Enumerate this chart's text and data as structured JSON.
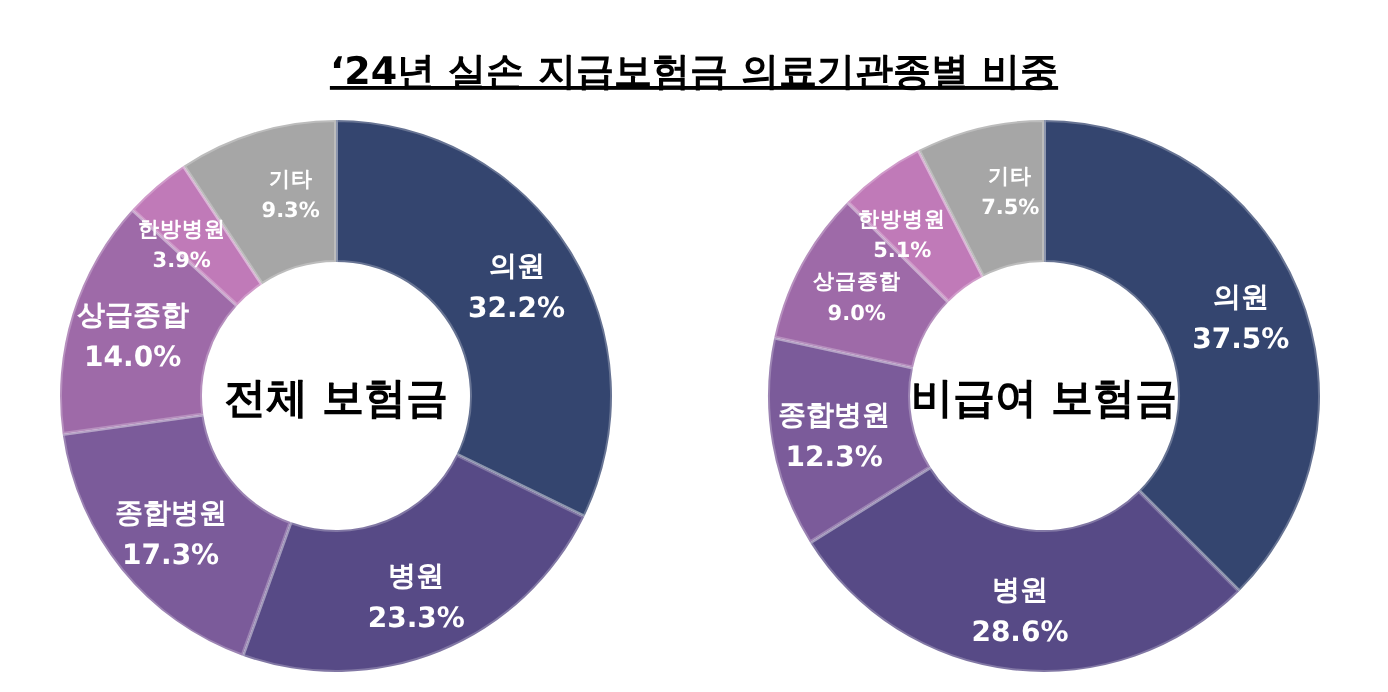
{
  "chart_data": [
    {
      "type": "donut",
      "title": "‘24년 실손 지급보험금 의료기관종별 비중",
      "annotations": [
        "전체 보험금"
      ],
      "value_labels": [
        "32.2%",
        "23.3%",
        "17.3%",
        "14.0%",
        "3.9%",
        "9.3%"
      ],
      "categories": [
        "의원",
        "병원",
        "종합병원",
        "상급종합",
        "한방병원",
        "기타"
      ],
      "values": [
        32.2,
        23.3,
        17.3,
        14.0,
        3.9,
        9.3
      ],
      "colors": [
        "#34456f",
        "#574a86",
        "#7b5b9a",
        "#9e6aa8",
        "#c07ab8",
        "#a6a6a6"
      ]
    },
    {
      "type": "donut",
      "annotations": [
        "비급여 보험금"
      ],
      "value_labels": [
        "37.5%",
        "28.6%",
        "12.3%",
        "9.0%",
        "5.1%",
        "7.5%"
      ],
      "categories": [
        "의원",
        "병원",
        "종합병원",
        "상급종합",
        "한방병원",
        "기타"
      ],
      "values": [
        37.5,
        28.6,
        12.3,
        9.0,
        5.1,
        7.5
      ],
      "colors": [
        "#34456f",
        "#574a86",
        "#7b5b9a",
        "#9e6aa8",
        "#c07ab8",
        "#a6a6a6"
      ]
    }
  ]
}
